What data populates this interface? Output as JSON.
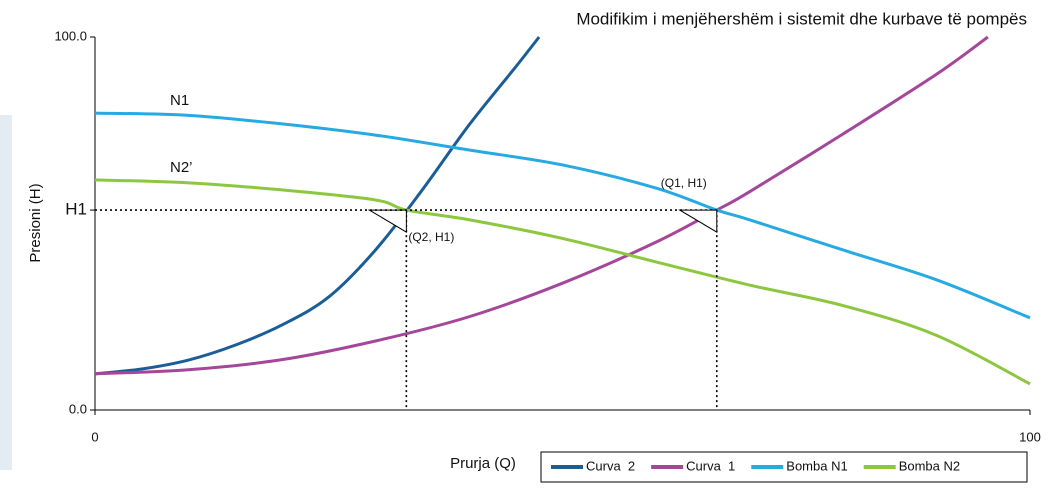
{
  "chart_data": {
    "type": "line",
    "title": "Modifikim i menjëhershëm i sistemit dhe kurbave të pompës",
    "x_label": "Prurja (Q)",
    "y_label": "Presioni (H)",
    "xlim": [
      0,
      100
    ],
    "ylim": [
      0,
      100
    ],
    "xticks": [
      0,
      100
    ],
    "yticks": [
      {
        "value": 0,
        "label": "0.0"
      },
      {
        "value": 53.6,
        "label": "H1"
      },
      {
        "value": 100,
        "label": "100.0"
      }
    ],
    "grid": false,
    "legend": "bottom-right",
    "series": [
      {
        "name": "Curva  2",
        "color": "#1b5e97",
        "x": [
          0,
          5,
          10,
          15,
          20,
          25,
          30,
          35,
          40,
          45,
          47.5
        ],
        "values": [
          9.7,
          11,
          13.4,
          17.4,
          22.8,
          30.3,
          42.9,
          59,
          76.4,
          92,
          100
        ]
      },
      {
        "name": "Curva  1",
        "color": "#a4479a",
        "x": [
          0,
          10,
          20,
          30,
          40,
          50,
          60,
          66.5,
          70,
          80,
          90,
          95.5
        ],
        "values": [
          9.7,
          10.8,
          13.5,
          18.5,
          25,
          34,
          45,
          53.6,
          58.5,
          74,
          90,
          100
        ]
      },
      {
        "name": "Bomba N1",
        "color": "#27aae1",
        "line_label": "N1",
        "x": [
          0,
          10,
          20,
          30,
          40,
          50,
          60,
          66.5,
          70,
          80,
          90,
          100
        ],
        "values": [
          79.6,
          79,
          76.7,
          73.7,
          69.7,
          65.7,
          59.5,
          53.6,
          51,
          42.9,
          34.9,
          24.7
        ]
      },
      {
        "name": "Bomba N2",
        "color": "#8dc63f",
        "line_label": "N2’",
        "x": [
          0,
          10,
          20,
          30,
          33.3,
          40,
          50,
          60,
          70,
          80,
          90,
          100
        ],
        "values": [
          61.7,
          60.9,
          59,
          56.3,
          53.6,
          51,
          46,
          39.7,
          33.5,
          28,
          20,
          7
        ]
      }
    ],
    "points": [
      {
        "label": "(Q2, H1)",
        "x": 33.3,
        "y": 53.6
      },
      {
        "label": "(Q1, H1)",
        "x": 66.5,
        "y": 53.6
      }
    ]
  }
}
